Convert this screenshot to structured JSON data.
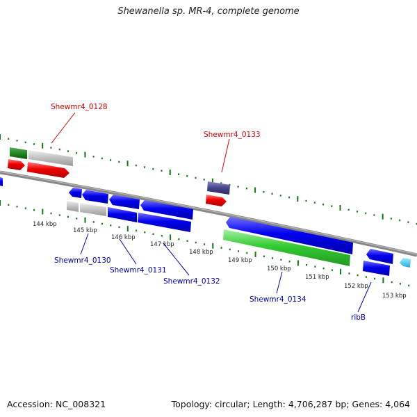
{
  "title": "Shewanella sp. MR-4, complete genome",
  "footer": {
    "accession": "Accession: NC_008321",
    "summary": "Topology: circular; Length: 4,706,287 bp; Genes: 4,064"
  },
  "colors": {
    "red_label": "#cc0000",
    "blue_label": "#0000aa",
    "gene_blue": "#0000ee",
    "gene_red": "#ee0000",
    "gene_green": "#33cc33",
    "gene_darkgreen": "#228822",
    "gene_gray": "#c0c0c0",
    "gene_navy": "#44448a",
    "gene_cyan": "#33ccee",
    "tick_green": "#117711"
  },
  "ticks": [
    "144 kbp",
    "145 kbp",
    "146 kbp",
    "147 kbp",
    "148 kbp",
    "149 kbp",
    "150 kbp",
    "151 kbp",
    "152 kbp",
    "153 kbp"
  ],
  "gene_labels": {
    "g0128": "Shewmr4_0128",
    "g0133": "Shewmr4_0133",
    "g0130": "Shewmr4_0130",
    "g0131": "Shewmr4_0131",
    "g0132": "Shewmr4_0132",
    "g0134": "Shewmr4_0134",
    "ribB": "ribB"
  }
}
